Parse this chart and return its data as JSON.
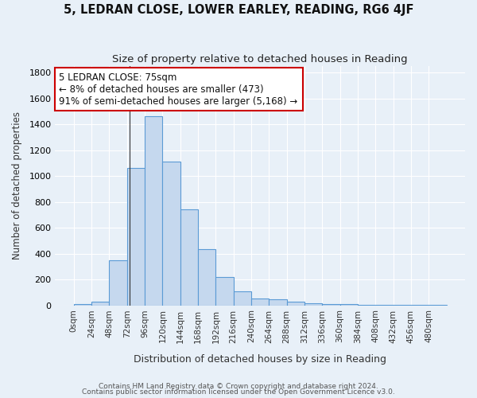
{
  "title": "5, LEDRAN CLOSE, LOWER EARLEY, READING, RG6 4JF",
  "subtitle": "Size of property relative to detached houses in Reading",
  "xlabel": "Distribution of detached houses by size in Reading",
  "ylabel": "Number of detached properties",
  "footnote1": "Contains HM Land Registry data © Crown copyright and database right 2024.",
  "footnote2": "Contains public sector information licensed under the Open Government Licence v3.0.",
  "bar_labels": [
    "0sqm",
    "24sqm",
    "48sqm",
    "72sqm",
    "96sqm",
    "120sqm",
    "144sqm",
    "168sqm",
    "192sqm",
    "216sqm",
    "240sqm",
    "264sqm",
    "288sqm",
    "312sqm",
    "336sqm",
    "360sqm",
    "384sqm",
    "408sqm",
    "432sqm",
    "456sqm",
    "480sqm"
  ],
  "bar_values": [
    10,
    30,
    350,
    1065,
    1465,
    1110,
    745,
    435,
    220,
    110,
    55,
    50,
    30,
    18,
    13,
    7,
    4,
    3,
    2,
    1,
    2
  ],
  "bar_color": "#c5d8ee",
  "bar_edge_color": "#5b9bd5",
  "bg_color": "#e8f0f8",
  "annotation_line1": "5 LEDRAN CLOSE: 75sqm",
  "annotation_line2": "← 8% of detached houses are smaller (473)",
  "annotation_line3": "91% of semi-detached houses are larger (5,168) →",
  "annotation_box_color": "white",
  "annotation_box_edge": "#cc0000",
  "vline_x": 75,
  "bin_width": 24,
  "ylim": [
    0,
    1850
  ],
  "yticks": [
    0,
    200,
    400,
    600,
    800,
    1000,
    1200,
    1400,
    1600,
    1800
  ],
  "title_fontsize": 10.5,
  "subtitle_fontsize": 9.5
}
